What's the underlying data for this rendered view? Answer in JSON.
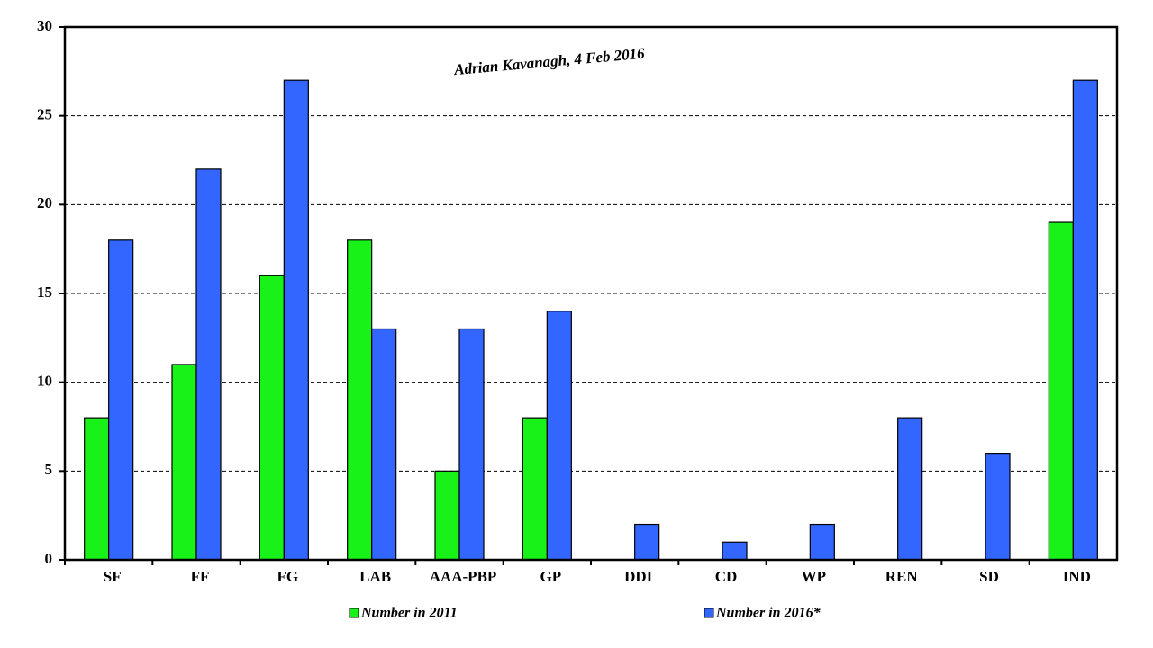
{
  "chart_data": {
    "type": "bar",
    "annotation": "Adrian Kavanagh, 4 Feb 2016",
    "categories": [
      "SF",
      "FF",
      "FG",
      "LAB",
      "AAA-PBP",
      "GP",
      "DDI",
      "CD",
      "WP",
      "REN",
      "SD",
      "IND"
    ],
    "series": [
      {
        "name": "Number in 2011",
        "color": "#19f219",
        "values": [
          8,
          11,
          16,
          18,
          5,
          8,
          0,
          0,
          0,
          0,
          0,
          19
        ]
      },
      {
        "name": "Number in 2016*",
        "color": "#3366ff",
        "values": [
          18,
          22,
          27,
          13,
          13,
          14,
          2,
          1,
          2,
          8,
          6,
          27
        ]
      }
    ],
    "ylim": [
      0,
      30
    ],
    "yticks": [
      0,
      5,
      10,
      15,
      20,
      25,
      30
    ],
    "grid": true
  }
}
